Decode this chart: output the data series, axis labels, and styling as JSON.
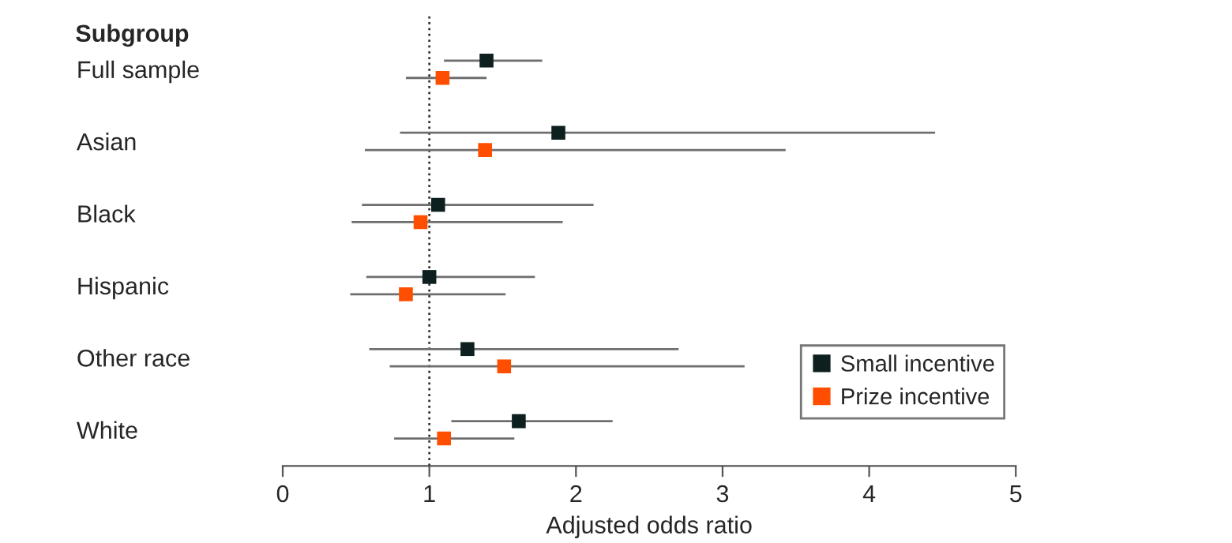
{
  "chart_data": {
    "type": "scatter",
    "orientation": "horizontal",
    "xlabel": "Adjusted odds ratio",
    "ylabel": "Subgroup",
    "categories": [
      "Full sample",
      "Asian",
      "Black",
      "Hispanic",
      "Other race",
      "White"
    ],
    "series": [
      {
        "name": "Small incentive",
        "color": "#0d1f1f",
        "values": [
          1.39,
          1.88,
          1.06,
          1.0,
          1.26,
          1.61
        ],
        "errors": [
          [
            1.1,
            1.77
          ],
          [
            0.8,
            4.45
          ],
          [
            0.54,
            2.12
          ],
          [
            0.57,
            1.72
          ],
          [
            0.59,
            2.7
          ],
          [
            1.15,
            2.25
          ]
        ]
      },
      {
        "name": "Prize incentive",
        "color": "#ff4e00",
        "values": [
          1.09,
          1.38,
          0.94,
          0.84,
          1.51,
          1.1
        ],
        "errors": [
          [
            0.84,
            1.39
          ],
          [
            0.56,
            3.43
          ],
          [
            0.47,
            1.91
          ],
          [
            0.46,
            1.52
          ],
          [
            0.73,
            3.15
          ],
          [
            0.76,
            1.58
          ]
        ]
      }
    ],
    "xlim": [
      0,
      5
    ],
    "xticks": [
      0,
      1,
      2,
      3,
      4,
      5
    ],
    "ref_lines": [
      {
        "axis": "x",
        "value": 1,
        "color": "#333333",
        "line_style": "dotted"
      }
    ],
    "legend": "bottom right",
    "marker": "square",
    "grid": false
  }
}
